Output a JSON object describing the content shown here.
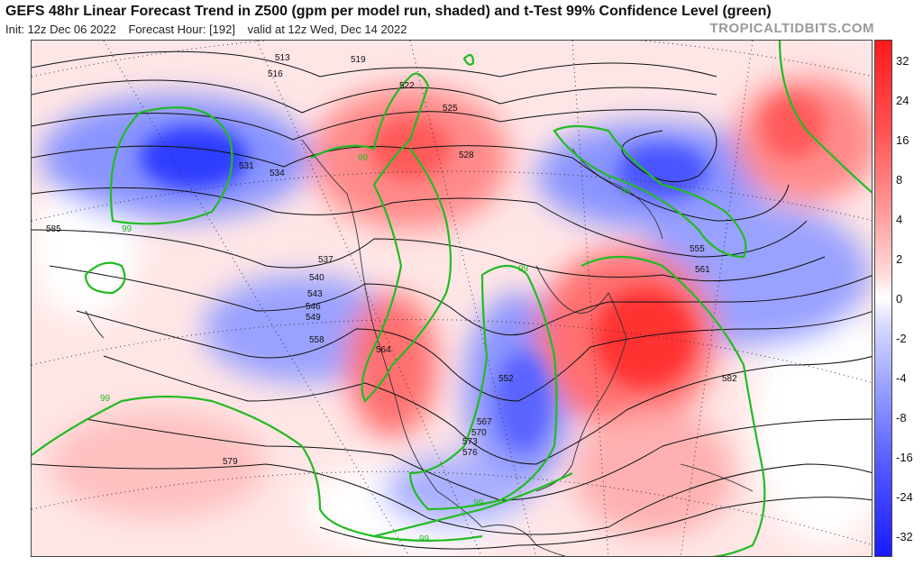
{
  "header": {
    "title": "GEFS 48hr Linear Forecast Trend in Z500 (gpm per model run, shaded) and t-Test 99% Confidence Level (green)",
    "init": "Init: 12z Dec 06 2022",
    "forecast_hour": "Forecast Hour: [192]",
    "valid": "valid at 12z Wed, Dec 14 2022",
    "brand": "TROPICALTIDBITS.COM"
  },
  "colorbar": {
    "ticks": [
      "32",
      "24",
      "16",
      "8",
      "4",
      "2",
      "0",
      "-2",
      "-4",
      "-8",
      "-16",
      "-24",
      "-32"
    ],
    "colors": {
      "pos_strong": "#ff1a1a",
      "pos_mid": "#ff7b7b",
      "pos_light": "#ffd0d0",
      "neutral": "#ffffff",
      "neg_light": "#d0d4ff",
      "neg_mid": "#7b86ff",
      "neg_strong": "#1a1aff"
    }
  },
  "map": {
    "contour_color": "#111111",
    "confidence_color": "#22bb22",
    "confidence_label": "99",
    "contour_labels": [
      "513",
      "516",
      "519",
      "522",
      "525",
      "528",
      "531",
      "534",
      "537",
      "540",
      "543",
      "546",
      "549",
      "552",
      "555",
      "558",
      "561",
      "564",
      "567",
      "570",
      "573",
      "576",
      "579",
      "582",
      "585"
    ]
  }
}
